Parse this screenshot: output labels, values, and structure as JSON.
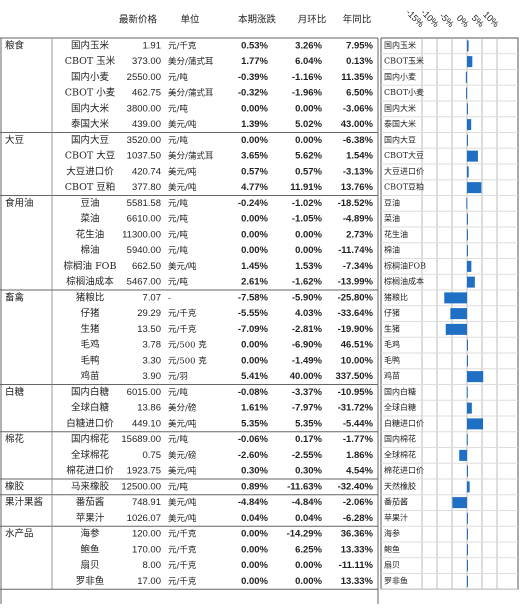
{
  "table": {
    "header": [
      "最新价格",
      "单位",
      "本期涨跌",
      "月环比",
      "年同比"
    ],
    "groups": [
      {
        "name": "粮食",
        "rows": [
          [
            "国内玉米",
            "1.91",
            "元/千克",
            "0.53%",
            "3.26%",
            "7.95%"
          ],
          [
            "CBOT 玉米",
            "373.00",
            "美分/蒲式耳",
            "1.77%",
            "6.04%",
            "0.13%"
          ],
          [
            "国内小麦",
            "2550.00",
            "元/吨",
            "-0.39%",
            "-1.16%",
            "11.35%"
          ],
          [
            "CBOT 小麦",
            "462.75",
            "美分/蒲式耳",
            "-0.32%",
            "-1.96%",
            "6.50%"
          ],
          [
            "国内大米",
            "3800.00",
            "元/吨",
            "0.00%",
            "0.00%",
            "-3.06%"
          ],
          [
            "泰国大米",
            "439.00",
            "美元/吨",
            "1.39%",
            "5.02%",
            "43.00%"
          ]
        ]
      },
      {
        "name": "大豆",
        "rows": [
          [
            "国内大豆",
            "3520.00",
            "元/吨",
            "0.00%",
            "0.00%",
            "-6.38%"
          ],
          [
            "CBOT 大豆",
            "1037.50",
            "美分/蒲式耳",
            "3.65%",
            "5.62%",
            "1.54%"
          ],
          [
            "大豆进口价",
            "420.74",
            "美元/吨",
            "0.57%",
            "0.57%",
            "-3.13%"
          ],
          [
            "CBOT 豆粕",
            "377.80",
            "美元/吨",
            "4.77%",
            "11.91%",
            "13.76%"
          ]
        ]
      },
      {
        "name": "食用油",
        "rows": [
          [
            "豆油",
            "5581.58",
            "元/吨",
            "-0.24%",
            "-1.02%",
            "-18.52%"
          ],
          [
            "菜油",
            "6610.00",
            "元/吨",
            "0.00%",
            "-1.05%",
            "-4.89%"
          ],
          [
            "花生油",
            "11300.00",
            "元/吨",
            "0.00%",
            "0.00%",
            "2.73%"
          ],
          [
            "棉油",
            "5940.00",
            "元/吨",
            "0.00%",
            "0.00%",
            "-11.74%"
          ],
          [
            "棕榈油 FOB",
            "662.50",
            "美元/吨",
            "1.45%",
            "1.53%",
            "-7.34%"
          ],
          [
            "棕榈油成本",
            "5467.00",
            "元/吨",
            "2.61%",
            "-1.62%",
            "-13.99%"
          ]
        ]
      },
      {
        "name": "畜禽",
        "rows": [
          [
            "猪粮比",
            "7.07",
            "-",
            "-7.58%",
            "-5.90%",
            "-25.80%"
          ],
          [
            "仔猪",
            "29.29",
            "元/千克",
            "-5.55%",
            "4.03%",
            "-33.64%"
          ],
          [
            "生猪",
            "13.50",
            "元/千克",
            "-7.09%",
            "-2.81%",
            "-19.90%"
          ],
          [
            "毛鸡",
            "3.78",
            "元/500 克",
            "0.00%",
            "-6.90%",
            "46.51%"
          ],
          [
            "毛鸭",
            "3.30",
            "元/500 克",
            "0.00%",
            "-1.49%",
            "10.00%"
          ],
          [
            "鸡苗",
            "3.90",
            "元/羽",
            "5.41%",
            "40.00%",
            "337.50%"
          ]
        ]
      },
      {
        "name": "白糖",
        "rows": [
          [
            "国内白糖",
            "6015.00",
            "元/吨",
            "-0.08%",
            "-3.37%",
            "-10.95%"
          ],
          [
            "全球白糖",
            "13.86",
            "美分/磅",
            "1.61%",
            "-7.97%",
            "-31.72%"
          ],
          [
            "白糖进口价",
            "449.10",
            "美元/吨",
            "5.35%",
            "5.35%",
            "-5.44%"
          ]
        ]
      },
      {
        "name": "棉花",
        "rows": [
          [
            "国内棉花",
            "15689.00",
            "元/吨",
            "-0.06%",
            "0.17%",
            "-1.77%"
          ],
          [
            "全球棉花",
            "0.75",
            "美元/磅",
            "-2.60%",
            "-2.55%",
            "1.86%"
          ],
          [
            "棉花进口价",
            "1923.75",
            "美元/吨",
            "0.30%",
            "0.30%",
            "4.54%"
          ]
        ]
      },
      {
        "name": "橡胶",
        "rows": [
          [
            "马来橡胶",
            "12500.00",
            "元/吨",
            "0.89%",
            "-11.63%",
            "-32.40%"
          ]
        ]
      },
      {
        "name": "果汁果酱",
        "rows": [
          [
            "番茄酱",
            "748.91",
            "美元/吨",
            "-4.84%",
            "-4.84%",
            "-2.06%"
          ],
          [
            "苹果汁",
            "1026.07",
            "美元/吨",
            "0.04%",
            "0.04%",
            "-6.28%"
          ]
        ]
      },
      {
        "name": "水产品",
        "rows": [
          [
            "海参",
            "120.00",
            "元/千克",
            "0.00%",
            "-14.29%",
            "36.36%"
          ],
          [
            "鲍鱼",
            "170.00",
            "元/千克",
            "0.00%",
            "6.25%",
            "13.33%"
          ],
          [
            "扇贝",
            "8.00",
            "元/千克",
            "0.00%",
            "0.00%",
            "-11.11%"
          ],
          [
            "罗非鱼",
            "17.00",
            "元/千克",
            "0.00%",
            "0.00%",
            "13.33%"
          ]
        ]
      }
    ]
  },
  "chart_data": {
    "type": "bar",
    "color": "#1f6fc5",
    "categories": [
      "国内玉米",
      "CBOT玉米",
      "国内小麦",
      "CBOT小麦",
      "国内大米",
      "泰国大米",
      "国内大豆",
      "CBOT大豆",
      "大豆进口价",
      "CBOT豆粕",
      "豆油",
      "菜油",
      "花生油",
      "棉油",
      "棕榈油FOB",
      "棕榈油成本",
      "猪粮比",
      "仔猪",
      "生猪",
      "毛鸡",
      "毛鸭",
      "鸡苗",
      "国内白糖",
      "全球白糖",
      "白糖进口价",
      "国内棉花",
      "全球棉花",
      "棉花进口价",
      "天然橡胶",
      "番茄酱",
      "苹果汁",
      "海参",
      "鲍鱼",
      "扇贝",
      "罗非鱼"
    ],
    "values": [
      0.53,
      1.77,
      -0.39,
      -0.32,
      0,
      1.39,
      0,
      3.65,
      0.57,
      4.77,
      -0.24,
      0,
      0,
      0,
      1.45,
      2.61,
      -7.58,
      -5.55,
      -7.09,
      0,
      0,
      5.41,
      -0.08,
      1.61,
      5.35,
      -0.06,
      -2.6,
      0.3,
      0.89,
      -4.84,
      0.04,
      0,
      0,
      0,
      0
    ],
    "xlim": [
      -15,
      17
    ],
    "xticks": [
      {
        "value": -15,
        "label": "-15%"
      },
      {
        "value": -10,
        "label": "-10%"
      },
      {
        "value": -5,
        "label": "-5%"
      },
      {
        "value": 0,
        "label": "0%"
      },
      {
        "value": 5,
        "label": "5%"
      },
      {
        "value": 10,
        "label": "10%"
      }
    ],
    "grid": true
  }
}
